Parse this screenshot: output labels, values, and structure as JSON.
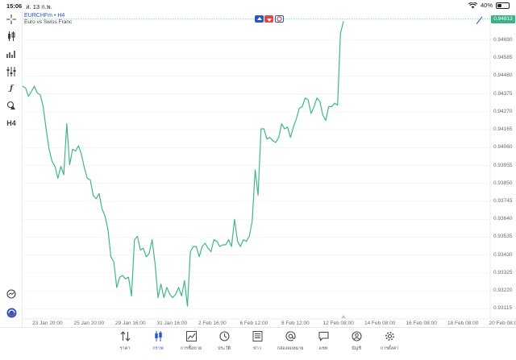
{
  "status": {
    "time": "15:06",
    "date": "ส. 13 ก.พ.",
    "battery": "40%",
    "battery_level": 0.4
  },
  "chart": {
    "symbol": "EURCHFm • H4",
    "description": "Euro vs Swiss Franc",
    "current_price": "0.94813",
    "colors": {
      "line": "#3fb68b",
      "accent": "#2757c4",
      "grid": "#ececec"
    },
    "y_ticks": [
      "0.94690",
      "0.94585",
      "0.94480",
      "0.94375",
      "0.94270",
      "0.94165",
      "0.94060",
      "0.93955",
      "0.93850",
      "0.93745",
      "0.93640",
      "0.93535",
      "0.93430",
      "0.93325",
      "0.93220",
      "0.93115"
    ],
    "x_ticks": [
      "23 Jan 20:00",
      "25 Jan 20:00",
      "29 Jan 16:00",
      "31 Jan 16:00",
      "2 Feb 16:00",
      "6 Feb 12:00",
      "8 Feb 12:00",
      "12 Feb 08:00",
      "14 Feb 08:00",
      "16 Feb 08:00",
      "18 Feb 08:00",
      "20 Feb 08:00"
    ]
  },
  "chart_data": {
    "type": "line",
    "ylim": [
      0.93065,
      0.94845
    ],
    "y": [
      0.9442,
      0.9441,
      0.9436,
      0.9439,
      0.9442,
      0.9438,
      0.9437,
      0.943,
      0.9417,
      0.9405,
      0.9398,
      0.9395,
      0.9388,
      0.9395,
      0.939,
      0.942,
      0.9396,
      0.9405,
      0.9404,
      0.9407,
      0.9402,
      0.9394,
      0.9388,
      0.9387,
      0.9378,
      0.9376,
      0.9379,
      0.937,
      0.9366,
      0.9358,
      0.9342,
      0.9339,
      0.9324,
      0.933,
      0.9331,
      0.9329,
      0.933,
      0.9319,
      0.9352,
      0.9354,
      0.9346,
      0.9347,
      0.9342,
      0.9344,
      0.9352,
      0.9338,
      0.9318,
      0.9326,
      0.9318,
      0.9324,
      0.932,
      0.9318,
      0.932,
      0.9324,
      0.9319,
      0.9328,
      0.9313,
      0.9345,
      0.9348,
      0.9348,
      0.9342,
      0.9348,
      0.935,
      0.9347,
      0.9345,
      0.9352,
      0.9351,
      0.9348,
      0.9349,
      0.9349,
      0.9352,
      0.9348,
      0.9364,
      0.9351,
      0.9348,
      0.9352,
      0.9351,
      0.9354,
      0.9363,
      0.9393,
      0.9378,
      0.9417,
      0.9417,
      0.9411,
      0.9412,
      0.941,
      0.9409,
      0.9412,
      0.942,
      0.9417,
      0.9418,
      0.9412,
      0.9418,
      0.9423,
      0.9429,
      0.943,
      0.9435,
      0.9434,
      0.9426,
      0.943,
      0.9435,
      0.9433,
      0.9425,
      0.9422,
      0.943,
      0.943,
      0.9432,
      0.9431,
      0.9473,
      0.948
    ]
  },
  "toolbar": {
    "crosshair": "crosshair-icon",
    "indicators": "candlestick-icon",
    "bars": "bar-chart-icon",
    "settings": "sliders-icon",
    "function": "ƒ",
    "objects": "shapes-icon",
    "timeframe": "H4"
  },
  "nav": [
    {
      "label": "ราคา",
      "icon": "quotes-icon"
    },
    {
      "label": "กราฟ",
      "icon": "chart-icon"
    },
    {
      "label": "การซื้อขาย",
      "icon": "trade-icon"
    },
    {
      "label": "ประวัติ",
      "icon": "history-icon"
    },
    {
      "label": "ข่าว",
      "icon": "news-icon"
    },
    {
      "label": "กล่องจดหมาย",
      "icon": "mailbox-icon"
    },
    {
      "label": "แชท",
      "icon": "chat-icon"
    },
    {
      "label": "บัญชี",
      "icon": "account-icon"
    },
    {
      "label": "การตั้งค่า",
      "icon": "settings-icon"
    }
  ]
}
